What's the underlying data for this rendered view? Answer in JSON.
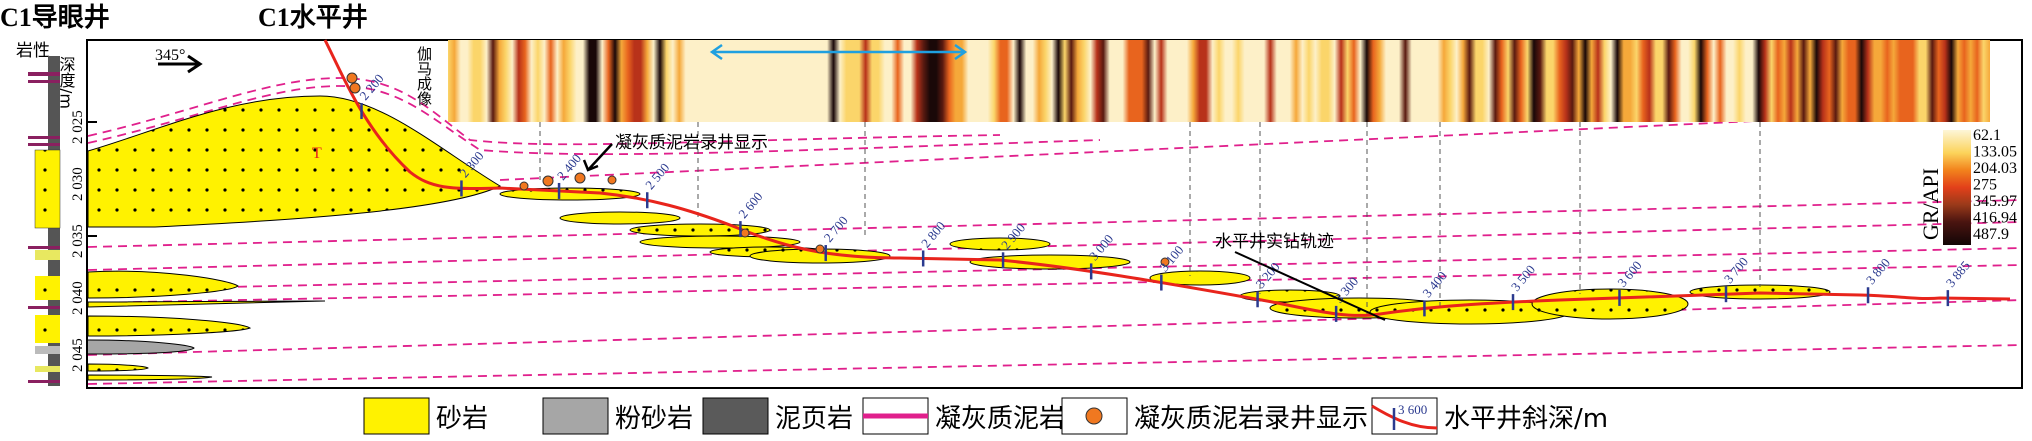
{
  "titles": {
    "pilot_well": "C1导眼井",
    "horizontal_well": "C1水平井"
  },
  "column_headers": {
    "lithology": "岩性",
    "depth": "深度/m"
  },
  "depth_ticks": [
    "2 025",
    "2 030",
    "2 035",
    "2 040",
    "2 045"
  ],
  "azimuth": "345°",
  "gamma_label": "伽马成像",
  "sand_label": "T",
  "annotations": {
    "tuff_show": "凝灰质泥岩录井显示",
    "trajectory": "水平井实钻轨迹"
  },
  "md_ticks": [
    "2 200",
    "2 300",
    "2 400",
    "2 500",
    "2 600",
    "2 700",
    "2 800",
    "2 900",
    "3 000",
    "3 100",
    "3 200",
    "3 300",
    "3 400",
    "3 500",
    "3 600",
    "3 700",
    "3 800",
    "3 885"
  ],
  "colorbar": {
    "title": "GR/API",
    "ticks": [
      "62.1",
      "133.05",
      "204.03",
      "275",
      "345.97",
      "416.94",
      "487.9"
    ]
  },
  "colors": {
    "sandstone": "#fff200",
    "siltstone": "#a6a6a6",
    "shale": "#5a5a5a",
    "tuff": "#e0208c",
    "trajectory": "#e8241c",
    "md": "#2b3a8f",
    "arrow": "#1fa0e0"
  },
  "legend": [
    {
      "label": "砂岩",
      "icon": "sandstone-swatch"
    },
    {
      "label": "粉砂岩",
      "icon": "siltstone-swatch"
    },
    {
      "label": "泥页岩",
      "icon": "shale-swatch"
    },
    {
      "label": "凝灰质泥岩",
      "icon": "tuff-mudstone-line"
    },
    {
      "label": "凝灰质泥岩录井显示",
      "icon": "tuff-show-dot"
    },
    {
      "label": "水平井斜深/m",
      "icon": "md-tick-line",
      "sample": "3 600"
    }
  ]
}
